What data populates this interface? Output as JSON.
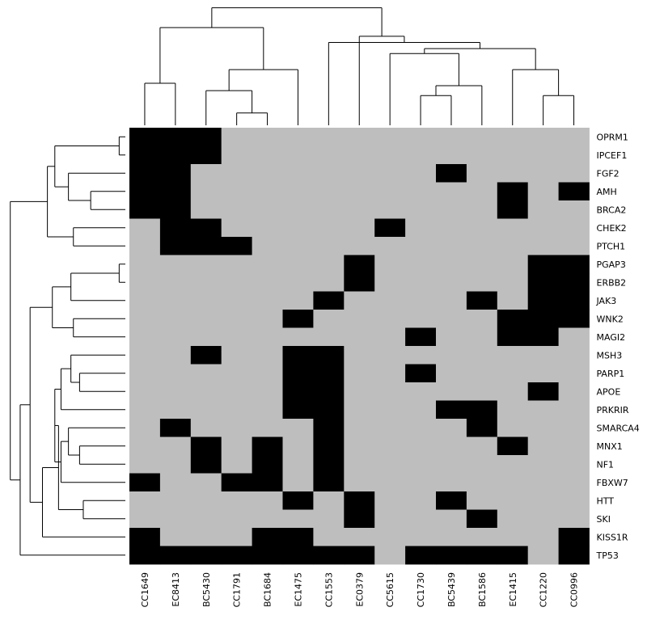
{
  "chart_data": {
    "type": "heatmap",
    "title": "",
    "columns": [
      "CC1649",
      "EC8413",
      "BC5430",
      "CC1791",
      "BC1684",
      "EC1475",
      "CC1553",
      "EC0379",
      "CC5615",
      "CC1730",
      "BC5439",
      "BC1586",
      "EC1415",
      "CC1220",
      "CC0996"
    ],
    "rows": [
      "OPRM1",
      "IPCEF1",
      "FGF2",
      "AMH",
      "BRCA2",
      "CHEK2",
      "PTCH1",
      "PGAP3",
      "ERBB2",
      "JAK3",
      "WNK2",
      "MAGI2",
      "MSH3",
      "PARP1",
      "APOE",
      "PRKRIR",
      "SMARCA4",
      "MNX1",
      "NF1",
      "FBXW7",
      "HTT",
      "SKI",
      "KISS1R",
      "TP53"
    ],
    "values": [
      [
        1,
        1,
        1,
        0,
        0,
        0,
        0,
        0,
        0,
        0,
        0,
        0,
        0,
        0,
        0
      ],
      [
        1,
        1,
        1,
        0,
        0,
        0,
        0,
        0,
        0,
        0,
        0,
        0,
        0,
        0,
        0
      ],
      [
        1,
        1,
        0,
        0,
        0,
        0,
        0,
        0,
        0,
        0,
        1,
        0,
        0,
        0,
        0
      ],
      [
        1,
        1,
        0,
        0,
        0,
        0,
        0,
        0,
        0,
        0,
        0,
        0,
        1,
        0,
        1
      ],
      [
        1,
        1,
        0,
        0,
        0,
        0,
        0,
        0,
        0,
        0,
        0,
        0,
        1,
        0,
        0
      ],
      [
        0,
        1,
        1,
        0,
        0,
        0,
        0,
        0,
        1,
        0,
        0,
        0,
        0,
        0,
        0
      ],
      [
        0,
        1,
        1,
        1,
        0,
        0,
        0,
        0,
        0,
        0,
        0,
        0,
        0,
        0,
        0
      ],
      [
        0,
        0,
        0,
        0,
        0,
        0,
        0,
        1,
        0,
        0,
        0,
        0,
        0,
        1,
        1
      ],
      [
        0,
        0,
        0,
        0,
        0,
        0,
        0,
        1,
        0,
        0,
        0,
        0,
        0,
        1,
        1
      ],
      [
        0,
        0,
        0,
        0,
        0,
        0,
        1,
        0,
        0,
        0,
        0,
        1,
        0,
        1,
        1
      ],
      [
        0,
        0,
        0,
        0,
        0,
        1,
        0,
        0,
        0,
        0,
        0,
        0,
        1,
        1,
        1
      ],
      [
        0,
        0,
        0,
        0,
        0,
        0,
        0,
        0,
        0,
        1,
        0,
        0,
        1,
        1,
        0
      ],
      [
        0,
        0,
        1,
        0,
        0,
        1,
        1,
        0,
        0,
        0,
        0,
        0,
        0,
        0,
        0
      ],
      [
        0,
        0,
        0,
        0,
        0,
        1,
        1,
        0,
        0,
        1,
        0,
        0,
        0,
        0,
        0
      ],
      [
        0,
        0,
        0,
        0,
        0,
        1,
        1,
        0,
        0,
        0,
        0,
        0,
        0,
        1,
        0
      ],
      [
        0,
        0,
        0,
        0,
        0,
        1,
        1,
        0,
        0,
        0,
        1,
        1,
        0,
        0,
        0
      ],
      [
        0,
        1,
        0,
        0,
        0,
        0,
        1,
        0,
        0,
        0,
        0,
        1,
        0,
        0,
        0
      ],
      [
        0,
        0,
        1,
        0,
        1,
        0,
        1,
        0,
        0,
        0,
        0,
        0,
        1,
        0,
        0
      ],
      [
        0,
        0,
        1,
        0,
        1,
        0,
        1,
        0,
        0,
        0,
        0,
        0,
        0,
        0,
        0
      ],
      [
        1,
        0,
        0,
        1,
        1,
        0,
        1,
        0,
        0,
        0,
        0,
        0,
        0,
        0,
        0
      ],
      [
        0,
        0,
        0,
        0,
        0,
        1,
        0,
        1,
        0,
        0,
        1,
        0,
        0,
        0,
        0
      ],
      [
        0,
        0,
        0,
        0,
        0,
        0,
        0,
        1,
        0,
        0,
        0,
        1,
        0,
        0,
        0
      ],
      [
        1,
        0,
        0,
        0,
        1,
        1,
        0,
        0,
        0,
        0,
        0,
        0,
        0,
        0,
        1
      ],
      [
        1,
        1,
        1,
        1,
        1,
        1,
        1,
        1,
        0,
        1,
        1,
        1,
        1,
        0,
        1
      ]
    ],
    "value_colors": {
      "0": "#bebebe",
      "1": "#000000"
    },
    "column_dendrogram": [
      [
        0,
        1,
        0.34
      ],
      [
        3,
        4,
        0.1
      ],
      [
        2,
        -2,
        0.28
      ],
      [
        -3,
        5,
        0.45
      ],
      [
        -1,
        -4,
        0.79
      ],
      [
        9,
        10,
        0.24
      ],
      [
        11,
        -6,
        0.32
      ],
      [
        13,
        14,
        0.24
      ],
      [
        12,
        -8,
        0.45
      ],
      [
        8,
        -7,
        0.58
      ],
      [
        -9,
        -10,
        0.62
      ],
      [
        6,
        -11,
        0.67
      ],
      [
        7,
        -12,
        0.72
      ],
      [
        -5,
        -13,
        0.95
      ]
    ],
    "row_dendrogram": [
      [
        0,
        1,
        0.05
      ],
      [
        3,
        4,
        0.28
      ],
      [
        2,
        -2,
        0.46
      ],
      [
        -1,
        -3,
        0.57
      ],
      [
        5,
        6,
        0.42
      ],
      [
        -4,
        -5,
        0.63
      ],
      [
        7,
        8,
        0.05
      ],
      [
        -7,
        9,
        0.44
      ],
      [
        10,
        11,
        0.42
      ],
      [
        -8,
        -9,
        0.59
      ],
      [
        13,
        14,
        0.37
      ],
      [
        12,
        -11,
        0.44
      ],
      [
        15,
        -12,
        0.52
      ],
      [
        17,
        18,
        0.37
      ],
      [
        16,
        -14,
        0.46
      ],
      [
        -15,
        19,
        0.52
      ],
      [
        -13,
        -16,
        0.57
      ],
      [
        20,
        21,
        0.34
      ],
      [
        -17,
        -18,
        0.54
      ],
      [
        -19,
        22,
        0.67
      ],
      [
        -10,
        -20,
        0.77
      ],
      [
        -21,
        23,
        0.85
      ],
      [
        -6,
        -22,
        0.93
      ]
    ]
  }
}
